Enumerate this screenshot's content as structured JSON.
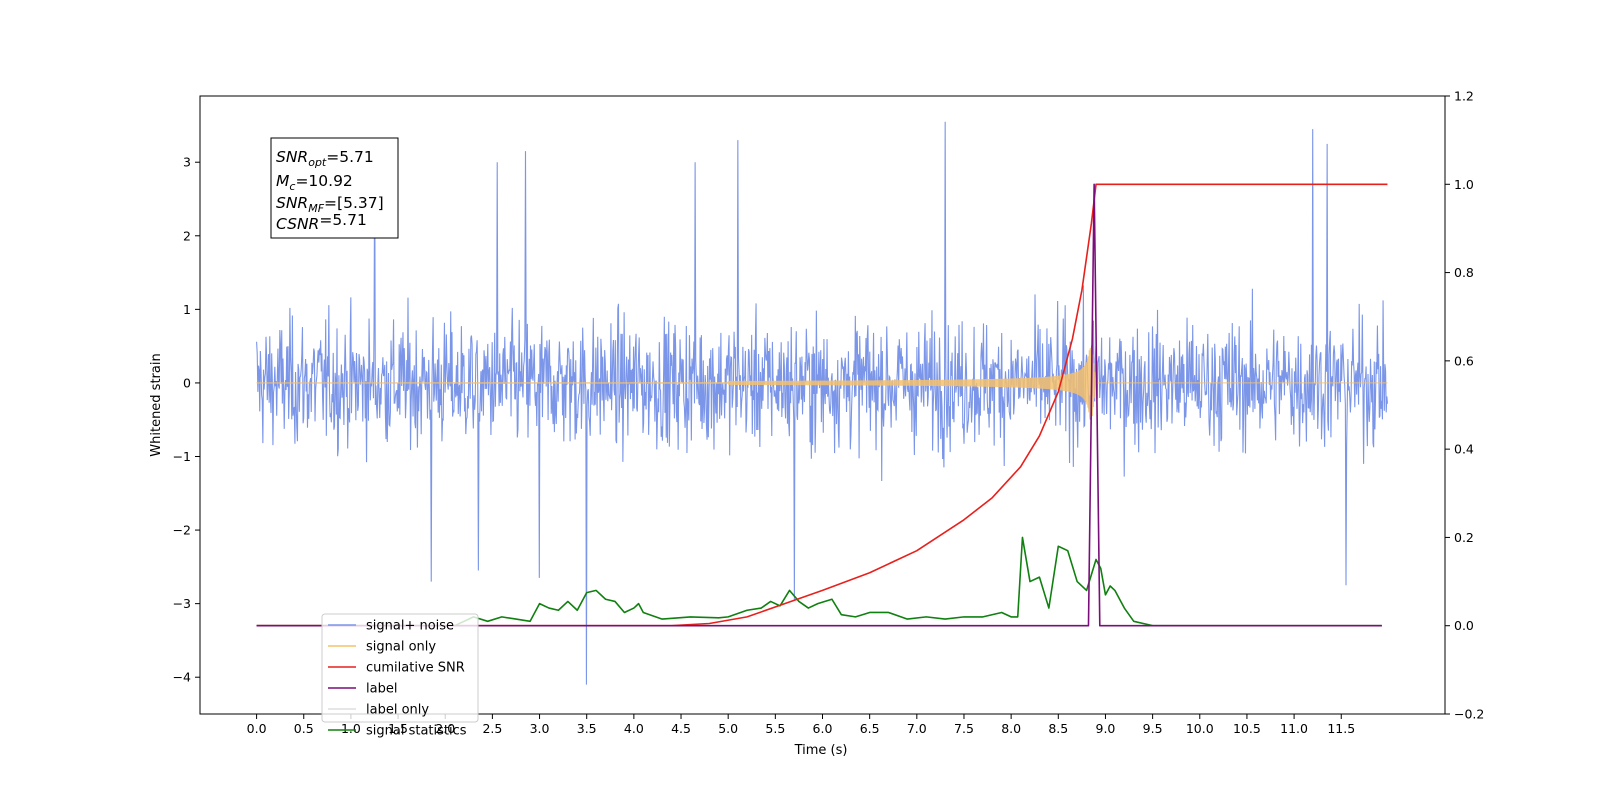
{
  "chart_data": {
    "type": "line",
    "xlabel": "Time (s)",
    "ylabel": "Whitened strain",
    "xlim": [
      -0.6,
      12.6
    ],
    "ylim": [
      -4.5,
      3.9
    ],
    "y2lim": [
      -0.2,
      1.2
    ],
    "x_ticks": [
      "0.0",
      "0.5",
      "1.0",
      "1.5",
      "2.0",
      "2.5",
      "3.0",
      "3.5",
      "4.0",
      "4.5",
      "5.0",
      "5.5",
      "6.0",
      "6.5",
      "7.0",
      "7.5",
      "8.0",
      "8.5",
      "9.0",
      "9.5",
      "10.0",
      "10.5",
      "11.0",
      "11.5"
    ],
    "y_ticks": [
      "3",
      "2",
      "1",
      "0",
      "−1",
      "−2",
      "−3",
      "−4"
    ],
    "y2_ticks": [
      "1.2",
      "1.0",
      "0.8",
      "0.6",
      "0.4",
      "0.2",
      "0.0",
      "−0.2"
    ],
    "legend_placement": "lower-left",
    "info_box": {
      "lines": [
        {
          "sym": "SNR",
          "sub": "opt",
          "rest": "=5.71"
        },
        {
          "sym": "M",
          "sub": "c",
          "rest": "=10.92"
        },
        {
          "sym": "SNR",
          "sub": "MF",
          "rest": "=[5.37]"
        },
        {
          "sym": "CSNR",
          "sub": "",
          "rest": "=5.71"
        }
      ]
    },
    "series": [
      {
        "name": "signal+ noise",
        "color": "#7b96e8",
        "axis": "left",
        "noise_envelope": [
          -2.0,
          2.0
        ],
        "peaks": [
          [
            3.5,
            -4.1
          ],
          [
            7.3,
            3.55
          ],
          [
            11.2,
            3.45
          ],
          [
            11.35,
            3.25
          ],
          [
            5.1,
            3.3
          ],
          [
            1.25,
            3.25
          ],
          [
            2.85,
            3.15
          ],
          [
            2.55,
            3.0
          ],
          [
            4.65,
            3.0
          ],
          [
            1.85,
            -2.7
          ],
          [
            5.7,
            -2.95
          ],
          [
            11.55,
            -2.75
          ],
          [
            2.35,
            -2.55
          ],
          [
            3.0,
            -2.65
          ]
        ]
      },
      {
        "name": "signal only",
        "color": "#f5c16c",
        "axis": "left",
        "chirp": {
          "start": 5.0,
          "merger": 8.85,
          "peak_amplitude": 0.6
        }
      },
      {
        "name": "cumilative SNR",
        "color": "#e8201c",
        "axis": "right",
        "points": [
          [
            0,
            0
          ],
          [
            4.4,
            0
          ],
          [
            4.8,
            0.005
          ],
          [
            5.2,
            0.02
          ],
          [
            5.6,
            0.05
          ],
          [
            6.0,
            0.08
          ],
          [
            6.5,
            0.12
          ],
          [
            7.0,
            0.17
          ],
          [
            7.5,
            0.24
          ],
          [
            7.8,
            0.29
          ],
          [
            8.1,
            0.36
          ],
          [
            8.3,
            0.43
          ],
          [
            8.5,
            0.53
          ],
          [
            8.65,
            0.65
          ],
          [
            8.75,
            0.76
          ],
          [
            8.85,
            0.91
          ],
          [
            8.9,
            1.0
          ],
          [
            11.99,
            1.0
          ]
        ]
      },
      {
        "name": "label",
        "color": "#7a0e7a",
        "axis": "right",
        "points": [
          [
            0,
            0
          ],
          [
            8.82,
            0
          ],
          [
            8.88,
            1.0
          ],
          [
            8.94,
            0
          ],
          [
            11.93,
            0
          ]
        ]
      },
      {
        "name": "label only",
        "color": "#dddddd",
        "axis": "right",
        "points": []
      },
      {
        "name": "signal statistics",
        "color": "#108010",
        "axis": "right",
        "points": [
          [
            0,
            0
          ],
          [
            1.5,
            0
          ],
          [
            2.1,
            0.0
          ],
          [
            2.3,
            0.02
          ],
          [
            2.45,
            0.01
          ],
          [
            2.6,
            0.02
          ],
          [
            2.75,
            0.015
          ],
          [
            2.9,
            0.01
          ],
          [
            3.0,
            0.05
          ],
          [
            3.1,
            0.04
          ],
          [
            3.2,
            0.035
          ],
          [
            3.3,
            0.055
          ],
          [
            3.4,
            0.035
          ],
          [
            3.5,
            0.075
          ],
          [
            3.6,
            0.08
          ],
          [
            3.7,
            0.06
          ],
          [
            3.8,
            0.055
          ],
          [
            3.9,
            0.03
          ],
          [
            4.0,
            0.04
          ],
          [
            4.05,
            0.05
          ],
          [
            4.1,
            0.03
          ],
          [
            4.3,
            0.015
          ],
          [
            4.6,
            0.02
          ],
          [
            4.9,
            0.018
          ],
          [
            5.0,
            0.02
          ],
          [
            5.2,
            0.035
          ],
          [
            5.35,
            0.04
          ],
          [
            5.45,
            0.055
          ],
          [
            5.55,
            0.045
          ],
          [
            5.65,
            0.08
          ],
          [
            5.75,
            0.055
          ],
          [
            5.85,
            0.04
          ],
          [
            5.95,
            0.05
          ],
          [
            6.1,
            0.06
          ],
          [
            6.2,
            0.025
          ],
          [
            6.35,
            0.02
          ],
          [
            6.5,
            0.03
          ],
          [
            6.7,
            0.03
          ],
          [
            6.9,
            0.015
          ],
          [
            7.1,
            0.02
          ],
          [
            7.3,
            0.015
          ],
          [
            7.5,
            0.02
          ],
          [
            7.7,
            0.02
          ],
          [
            7.9,
            0.03
          ],
          [
            8.0,
            0.02
          ],
          [
            8.07,
            0.02
          ],
          [
            8.12,
            0.2
          ],
          [
            8.2,
            0.1
          ],
          [
            8.3,
            0.11
          ],
          [
            8.4,
            0.04
          ],
          [
            8.5,
            0.18
          ],
          [
            8.6,
            0.17
          ],
          [
            8.7,
            0.1
          ],
          [
            8.8,
            0.08
          ],
          [
            8.9,
            0.15
          ],
          [
            8.95,
            0.13
          ],
          [
            9.0,
            0.07
          ],
          [
            9.05,
            0.09
          ],
          [
            9.1,
            0.08
          ],
          [
            9.2,
            0.04
          ],
          [
            9.3,
            0.01
          ],
          [
            9.5,
            0.0
          ],
          [
            11.93,
            0.0
          ]
        ]
      }
    ]
  }
}
